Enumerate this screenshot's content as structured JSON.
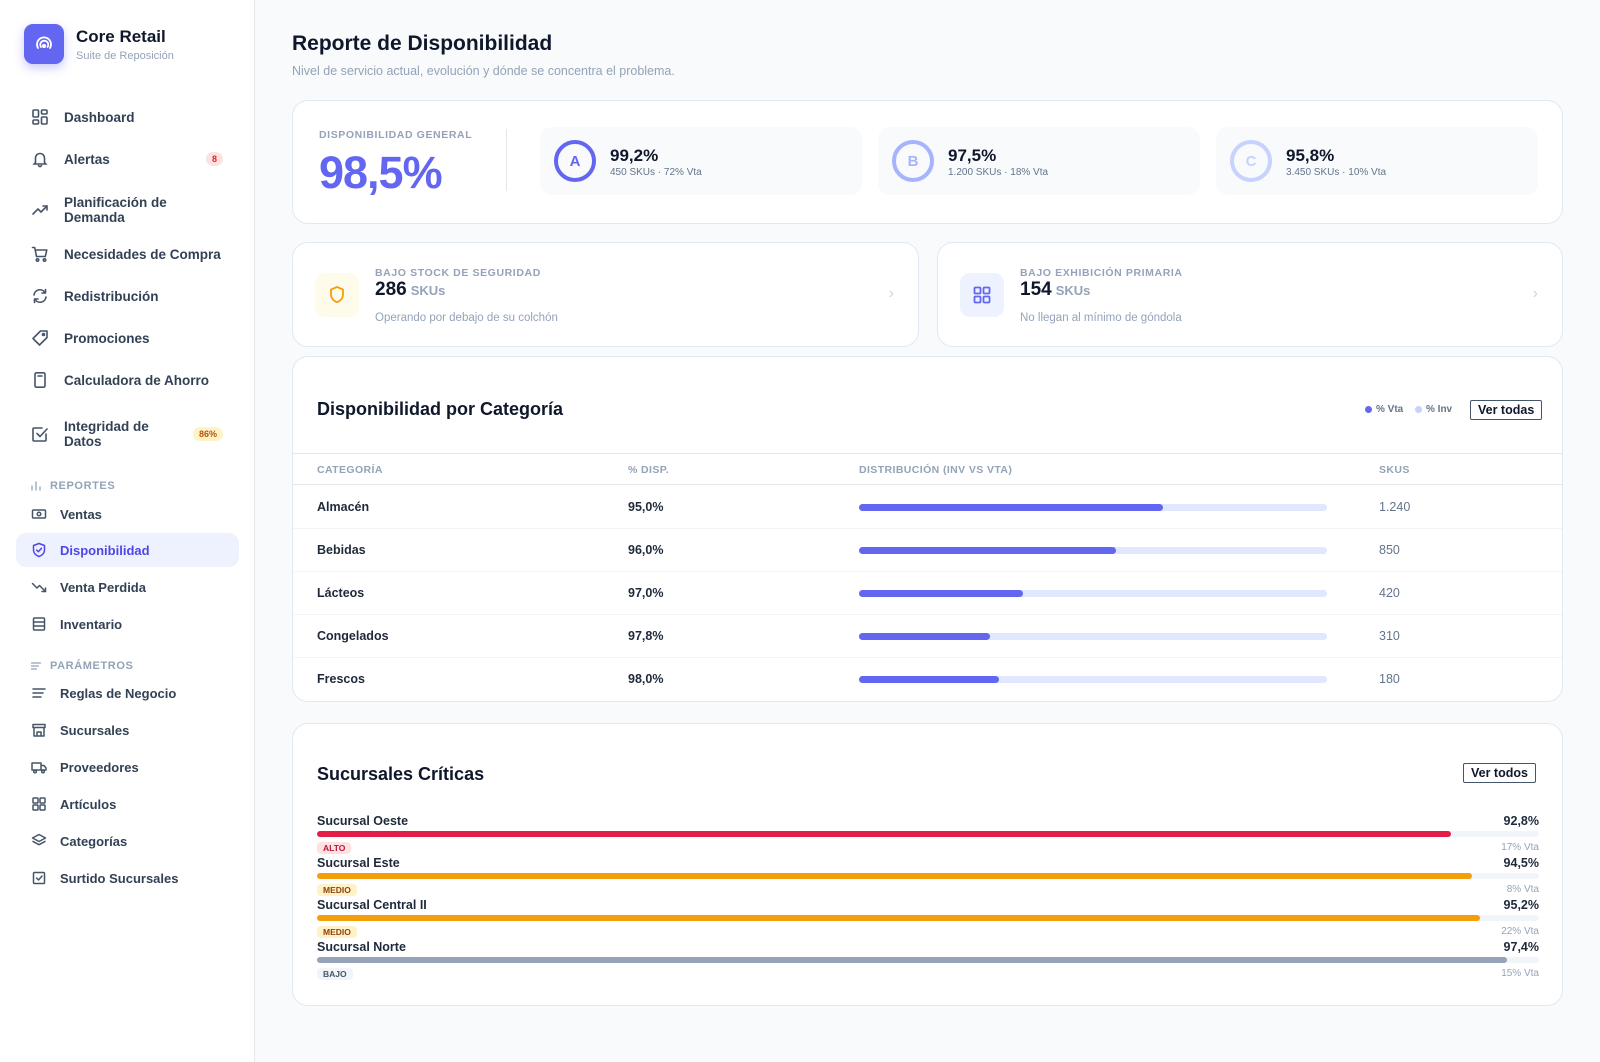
{
  "brand": {
    "title": "Core Retail",
    "subtitle": "Suite de Reposición"
  },
  "nav": [
    {
      "label": "Dashboard",
      "icon": "dashboard-icon"
    },
    {
      "label": "Alertas",
      "icon": "bell-icon",
      "badge": "8"
    },
    {
      "label": "Planificación de Demanda",
      "icon": "trend-up-icon"
    },
    {
      "label": "Necesidades de Compra",
      "icon": "cart-icon"
    },
    {
      "label": "Redistribución",
      "icon": "refresh-icon"
    },
    {
      "label": "Promociones",
      "icon": "tag-icon"
    },
    {
      "label": "Calculadora de Ahorro",
      "icon": "calculator-icon"
    },
    {
      "label": "Integridad de Datos",
      "icon": "check-square-icon",
      "badge": "86%"
    }
  ],
  "reports": {
    "label": "REPORTES",
    "items": [
      {
        "label": "Ventas",
        "icon": "cash-icon"
      },
      {
        "label": "Disponibilidad",
        "icon": "shield-check-icon",
        "active": true
      },
      {
        "label": "Venta Perdida",
        "icon": "trend-down-icon"
      },
      {
        "label": "Inventario",
        "icon": "database-icon"
      }
    ]
  },
  "params": {
    "label": "PARÁMETROS",
    "items": [
      {
        "label": "Reglas de Negocio",
        "icon": "list-icon"
      },
      {
        "label": "Sucursales",
        "icon": "store-icon"
      },
      {
        "label": "Proveedores",
        "icon": "truck-icon"
      },
      {
        "label": "Artículos",
        "icon": "grid-icon"
      },
      {
        "label": "Categorías",
        "icon": "layers-icon"
      },
      {
        "label": "Surtido Sucursales",
        "icon": "checkbox-icon"
      }
    ]
  },
  "page": {
    "title": "Reporte de Disponibilidad",
    "subtitle": "Nivel de servicio actual, evolución y dónde se concentra el problema."
  },
  "general": {
    "label": "DISPONIBILIDAD GENERAL",
    "value": "98,5%",
    "abc": [
      {
        "letter": "A",
        "value": "99,2%",
        "sub": "450 SKUs · 72% Vta",
        "color": "#6366f1"
      },
      {
        "letter": "B",
        "value": "97,5%",
        "sub": "1.200 SKUs · 18% Vta",
        "color": "#a5b4fc"
      },
      {
        "letter": "C",
        "value": "95,8%",
        "sub": "3.450 SKUs · 10% Vta",
        "color": "#c7d2fe"
      }
    ]
  },
  "alerts": [
    {
      "label": "BAJO STOCK DE SEGURIDAD",
      "value": "286",
      "unit": "SKUs",
      "desc": "Operando por debajo de su colchón",
      "icon": "shield-icon",
      "color": "#f59e0b",
      "bg": "#fffbeb"
    },
    {
      "label": "BAJO EXHIBICIÓN PRIMARIA",
      "value": "154",
      "unit": "SKUs",
      "desc": "No llegan al mínimo de góndola",
      "icon": "grid-icon",
      "color": "#6366f1",
      "bg": "#eef2ff"
    }
  ],
  "categories": {
    "title": "Disponibilidad por Categoría",
    "legend": [
      "% Vta",
      "% Inv"
    ],
    "button": "Ver todas",
    "headers": [
      "CATEGORÍA",
      "% DISP.",
      "DISTRIBUCIÓN (INV VS VTA)",
      "SKUS"
    ],
    "rows": [
      {
        "name": "Almacén",
        "pct": "95,0%",
        "share": 0.65,
        "skus": "1.240"
      },
      {
        "name": "Bebidas",
        "pct": "96,0%",
        "share": 0.55,
        "skus": "850"
      },
      {
        "name": "Lácteos",
        "pct": "97,0%",
        "share": 0.35,
        "skus": "420"
      },
      {
        "name": "Congelados",
        "pct": "97,8%",
        "share": 0.28,
        "skus": "310"
      },
      {
        "name": "Frescos",
        "pct": "98,0%",
        "share": 0.3,
        "skus": "180"
      }
    ]
  },
  "branches": {
    "title": "Sucursales Críticas",
    "button": "Ver todos",
    "items": [
      {
        "name": "Sucursal Oeste",
        "pct": "92,8%",
        "level": 0.928,
        "badge": "ALTO",
        "vta": "17% Vta",
        "color": "#e11d48",
        "badge_bg": "#fee2e2",
        "badge_color": "#be123c"
      },
      {
        "name": "Sucursal Este",
        "pct": "94,5%",
        "level": 0.945,
        "badge": "MEDIO",
        "vta": "8% Vta",
        "color": "#f59e0b",
        "badge_bg": "#fef3c7",
        "badge_color": "#92400e"
      },
      {
        "name": "Sucursal Central II",
        "pct": "95,2%",
        "level": 0.952,
        "badge": "MEDIO",
        "vta": "22% Vta",
        "color": "#f59e0b",
        "badge_bg": "#fef3c7",
        "badge_color": "#92400e"
      },
      {
        "name": "Sucursal Norte",
        "pct": "97,4%",
        "level": 0.974,
        "badge": "BAJO",
        "vta": "15% Vta",
        "color": "#94a3b8",
        "badge_bg": "#f1f5f9",
        "badge_color": "#475569"
      }
    ]
  }
}
